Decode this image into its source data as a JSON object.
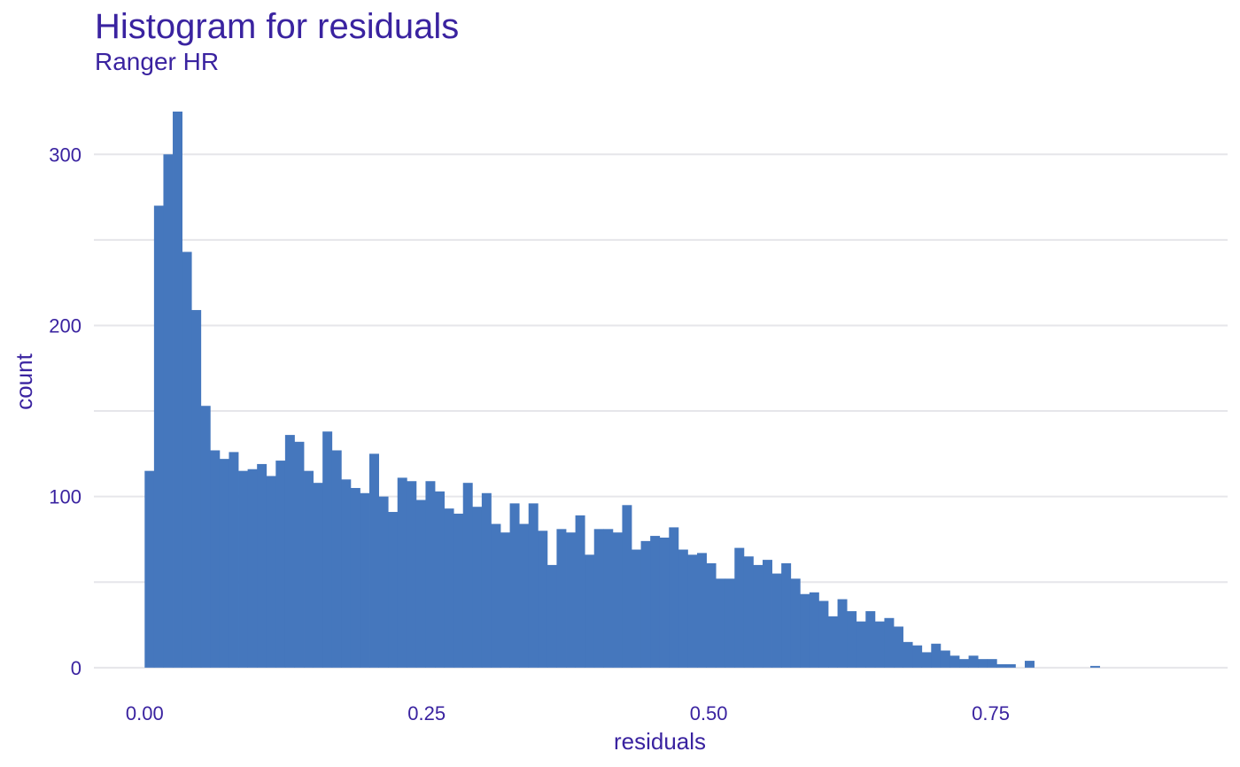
{
  "chart_data": {
    "type": "bar",
    "title": "Histogram for residuals",
    "subtitle": "Ranger HR",
    "xlabel": "residuals",
    "ylabel": "count",
    "x_ticks": [
      0,
      0.25,
      0.5,
      0.75
    ],
    "x_tick_labels": [
      "0.00",
      "0.25",
      "0.50",
      "0.75"
    ],
    "y_ticks": [
      0,
      100,
      200,
      300
    ],
    "y_tick_labels": [
      "0",
      "100",
      "200",
      "300"
    ],
    "xlim": [
      -0.045,
      0.96
    ],
    "ylim": [
      -12,
      340
    ],
    "grid": true,
    "bar_color": "#4577bd",
    "grid_color": "#e6e6ea",
    "text_color": "#3a23a0",
    "bin_width": 0.0083,
    "bin_starts": [
      0.0,
      0.0083,
      0.0166,
      0.0249,
      0.0332,
      0.0415,
      0.0498,
      0.0581,
      0.0664,
      0.0747,
      0.083,
      0.0913,
      0.0996,
      0.1079,
      0.1162,
      0.1245,
      0.1328,
      0.1411,
      0.1494,
      0.1577,
      0.166,
      0.1743,
      0.1826,
      0.1909,
      0.1992,
      0.2075,
      0.2158,
      0.2241,
      0.2324,
      0.2407,
      0.249,
      0.2573,
      0.2656,
      0.2739,
      0.2822,
      0.2905,
      0.2988,
      0.3071,
      0.3154,
      0.3237,
      0.332,
      0.3403,
      0.3486,
      0.3569,
      0.3652,
      0.3735,
      0.3818,
      0.3901,
      0.3984,
      0.4067,
      0.415,
      0.4233,
      0.4316,
      0.4399,
      0.4482,
      0.4565,
      0.4648,
      0.4731,
      0.4814,
      0.4897,
      0.498,
      0.5063,
      0.5146,
      0.5229,
      0.5312,
      0.5395,
      0.5478,
      0.5561,
      0.5644,
      0.5727,
      0.581,
      0.5893,
      0.5976,
      0.6059,
      0.6142,
      0.6225,
      0.6308,
      0.6391,
      0.6474,
      0.6557,
      0.664,
      0.6723,
      0.6806,
      0.6889,
      0.6972,
      0.7055,
      0.7138,
      0.7221,
      0.7304,
      0.7387,
      0.747,
      0.7553,
      0.7636,
      0.7719,
      0.7802,
      0.7885,
      0.7968,
      0.8051,
      0.8134,
      0.8217,
      0.83,
      0.8383,
      0.8466,
      0.8549,
      0.8632,
      0.8715,
      0.8798,
      0.8881,
      0.8964,
      0.9047
    ],
    "values": [
      115,
      270,
      300,
      325,
      243,
      209,
      153,
      127,
      122,
      126,
      115,
      116,
      119,
      112,
      121,
      136,
      132,
      115,
      108,
      138,
      127,
      110,
      105,
      102,
      125,
      100,
      91,
      111,
      109,
      98,
      109,
      103,
      93,
      90,
      108,
      94,
      102,
      84,
      79,
      96,
      84,
      96,
      80,
      60,
      81,
      79,
      89,
      66,
      81,
      81,
      79,
      95,
      69,
      74,
      77,
      76,
      82,
      69,
      66,
      67,
      61,
      52,
      52,
      70,
      65,
      60,
      63,
      55,
      61,
      52,
      43,
      44,
      39,
      30,
      40,
      33,
      27,
      33,
      27,
      29,
      24,
      15,
      13,
      9,
      14,
      10,
      7,
      5,
      7,
      5,
      5,
      2,
      2,
      0,
      4,
      0,
      0,
      0,
      0,
      0,
      0,
      1,
      0,
      0,
      0,
      0,
      0,
      0,
      0,
      0
    ]
  }
}
